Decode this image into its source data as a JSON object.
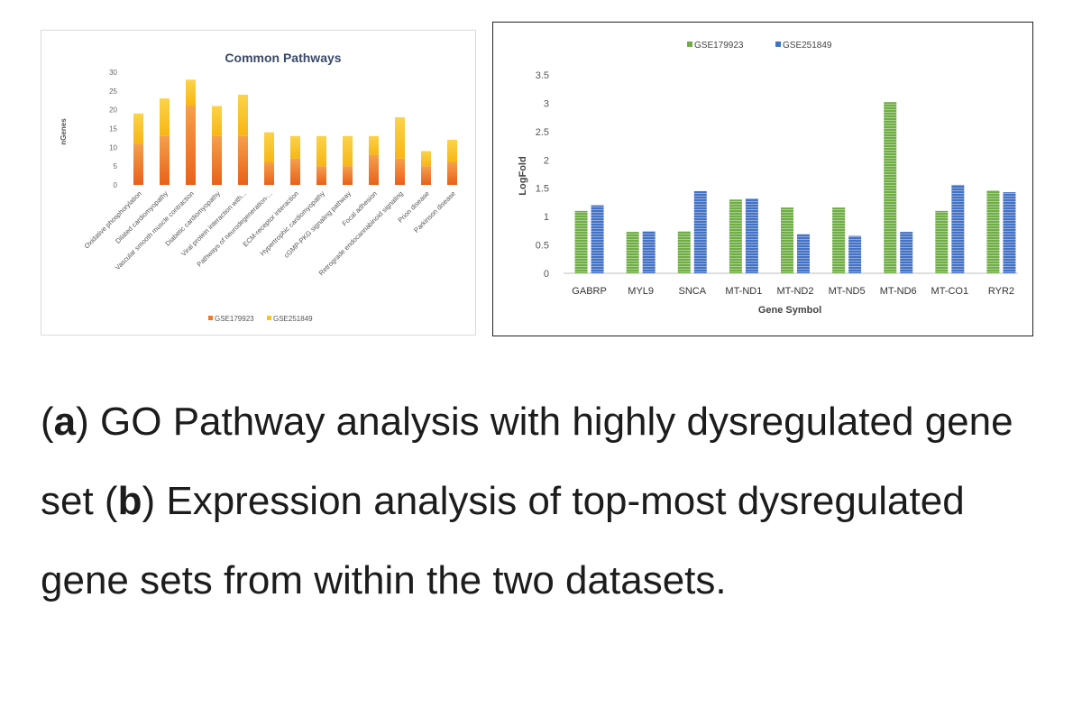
{
  "chart_data": [
    {
      "type": "bar",
      "stacked": true,
      "title": "Common Pathways",
      "ylabel": "nGenes",
      "xlabel": "",
      "ylim": [
        0,
        30
      ],
      "yticks": [
        0,
        5,
        10,
        15,
        20,
        25,
        30
      ],
      "categories": [
        "Oxidative phosphorylation",
        "Dilated cardiomyopathy",
        "Vascular smooth muscle contraction",
        "Diabetic cardiomyopathy",
        "Viral protein interaction with...",
        "Pathways of neurodegeneration-...",
        "ECM-receptor interaction",
        "Hypertrophic cardiomyopathy",
        "cGMP-PKG signaling pathway",
        "Focal adhesion",
        "Retrograde endocannabinoid signaling",
        "Prion disease",
        "Parkinson disease"
      ],
      "series": [
        {
          "name": "GSE179923",
          "color": "#ec7a2c",
          "values": [
            11,
            13,
            21,
            13,
            13,
            6,
            7,
            5,
            5,
            8,
            7,
            5,
            6
          ]
        },
        {
          "name": "GSE251849",
          "color": "#fcc419",
          "values": [
            8,
            10,
            7,
            8,
            11,
            8,
            6,
            8,
            8,
            5,
            11,
            4,
            6
          ]
        }
      ],
      "legend": "bottom",
      "grid": false
    },
    {
      "type": "bar",
      "title": "",
      "ylabel": "LogFold",
      "xlabel": "Gene Symbol",
      "ylim": [
        0,
        3.5
      ],
      "yticks": [
        "0",
        "0.5",
        "1",
        "1.5",
        "2",
        "2.5",
        "3",
        "3.5"
      ],
      "categories": [
        "GABRP",
        "MYL9",
        "SNCA",
        "MT-ND1",
        "MT-ND2",
        "MT-ND5",
        "MT-ND6",
        "MT-CO1",
        "RYR2"
      ],
      "series": [
        {
          "name": "GSE179923",
          "color": "#70ad47",
          "values": [
            1.1,
            0.73,
            0.74,
            1.3,
            1.16,
            1.16,
            3.02,
            1.1,
            1.46
          ]
        },
        {
          "name": "GSE251849",
          "color": "#4472c4",
          "values": [
            1.2,
            0.74,
            1.45,
            1.32,
            0.69,
            0.66,
            0.73,
            1.56,
            1.43
          ]
        }
      ],
      "legend": "top",
      "grid": false
    }
  ],
  "caption": {
    "a_label": "a",
    "a_text": " GO Pathway analysis with highly dysregulated gene set (",
    "b_label": "b",
    "b_text": " Expression analysis of top-most dysregulated gene sets from within the two datasets."
  }
}
